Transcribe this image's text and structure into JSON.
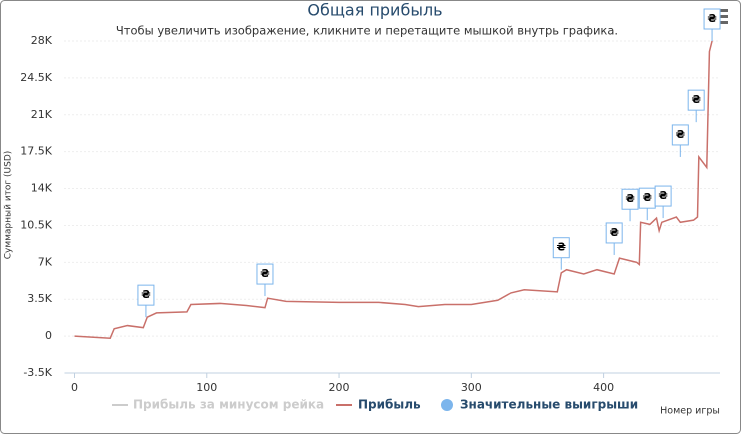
{
  "chart_data": {
    "type": "line",
    "title": "Общая прибыль",
    "subtitle": "Чтобы увеличить изображение, кликните и перетащите мышкой внутрь графика.",
    "x_label": "Номер игры",
    "y_label": "Суммарный итог (USD)",
    "xlim": [
      0,
      488
    ],
    "xticks": [
      0,
      100,
      200,
      300,
      400
    ],
    "ylim": [
      -3500,
      28000
    ],
    "yticks": [
      {
        "value": 28000,
        "label": "28K"
      },
      {
        "value": 24500,
        "label": "24.5K"
      },
      {
        "value": 21000,
        "label": "21K"
      },
      {
        "value": 17500,
        "label": "17.5K"
      },
      {
        "value": 14000,
        "label": "14K"
      },
      {
        "value": 10500,
        "label": "10.5K"
      },
      {
        "value": 7000,
        "label": "7K"
      },
      {
        "value": 3500,
        "label": "3.5K"
      },
      0,
      {
        "value": -3500,
        "label": "-3.5K"
      }
    ],
    "grid": true,
    "series": [
      {
        "name": "Прибыль за минусом рейка",
        "color": "#cccccc",
        "visible": false
      },
      {
        "name": "Прибыль",
        "color": "#c9706a",
        "x": [
          0,
          27,
          30,
          40,
          52,
          55,
          62,
          85,
          88,
          110,
          130,
          144,
          146,
          160,
          200,
          230,
          250,
          260,
          280,
          300,
          320,
          330,
          340,
          365,
          368,
          372,
          385,
          395,
          408,
          412,
          425,
          427,
          428,
          435,
          440,
          442,
          444,
          455,
          458,
          468,
          471,
          472,
          478,
          480,
          482
        ],
        "values": [
          0,
          -200,
          700,
          1000,
          800,
          1800,
          2200,
          2300,
          3000,
          3100,
          2900,
          2700,
          3600,
          3300,
          3200,
          3200,
          3000,
          2800,
          3000,
          3000,
          3400,
          4100,
          4400,
          4200,
          6000,
          6300,
          5900,
          6300,
          5900,
          7400,
          7000,
          6800,
          10800,
          10600,
          11200,
          10000,
          10800,
          11300,
          10800,
          11000,
          11300,
          17000,
          16000,
          27000,
          28000
        ]
      },
      {
        "name": "Значительные выигрыши",
        "color": "#7cb5ec",
        "type": "flags",
        "flag_text": "₴",
        "x": [
          54,
          144,
          368,
          408,
          420,
          433,
          445,
          458,
          470,
          482
        ],
        "values": [
          1800,
          3800,
          6300,
          7700,
          10900,
          11000,
          11200,
          17000,
          20300,
          28000
        ]
      }
    ]
  }
}
